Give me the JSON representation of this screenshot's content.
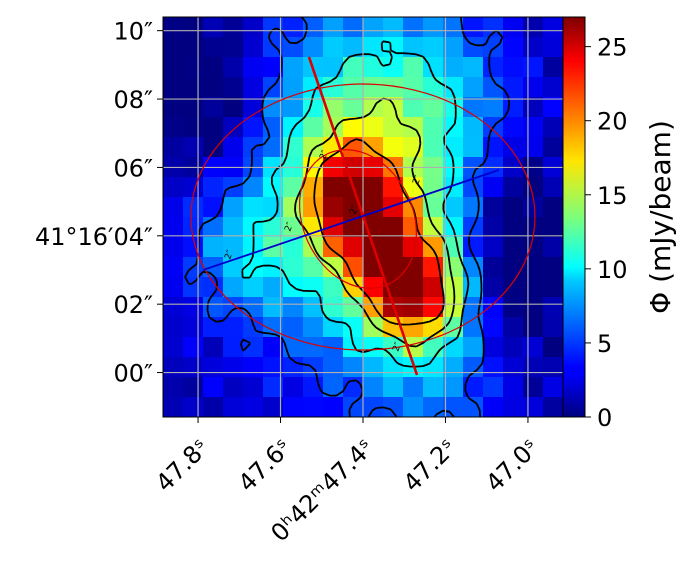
{
  "chart_data": {
    "type": "heatmap",
    "title": "",
    "xlabel": "",
    "ylabel": "",
    "colorbar": {
      "label": "Φ (mJy/beam)",
      "min": 0,
      "max": 27,
      "ticks": [
        0,
        5,
        10,
        15,
        20,
        25
      ],
      "colormap": "jet"
    },
    "x_axis": {
      "coordinate": "RA",
      "direction": "decreasing-right",
      "ticks": [
        {
          "label": "47.8ˢ",
          "value_s": 47.8
        },
        {
          "label": "47.6ˢ",
          "value_s": 47.6
        },
        {
          "label": "0ʰ42ᵐ47.4ˢ",
          "value_s": 47.4
        },
        {
          "label": "47.2ˢ",
          "value_s": 47.2
        },
        {
          "label": "47.0ˢ",
          "value_s": 47.0
        }
      ],
      "range_s": [
        47.885,
        46.915
      ],
      "tick_label_rotation_deg": 45
    },
    "y_axis": {
      "coordinate": "Dec",
      "ticks": [
        {
          "label": "10″",
          "value_arcsec": 10
        },
        {
          "label": "08″",
          "value_arcsec": 8
        },
        {
          "label": "06″",
          "value_arcsec": 6
        },
        {
          "label": "41°16′04″",
          "value_arcsec": 4
        },
        {
          "label": "02″",
          "value_arcsec": 2
        },
        {
          "label": "00″",
          "value_arcsec": 0
        }
      ],
      "range_arcsec": [
        -1.3,
        10.4
      ]
    },
    "grid": true,
    "grid_size": [
      20,
      20
    ],
    "contour_levels_mJy_per_beam": [
      5,
      10,
      15,
      20
    ],
    "overlays": {
      "ellipses_color": "#dd0000",
      "major_axis_color": "#dd0000",
      "minor_axis_color": "#0000cc",
      "axis_label": "2″"
    }
  }
}
